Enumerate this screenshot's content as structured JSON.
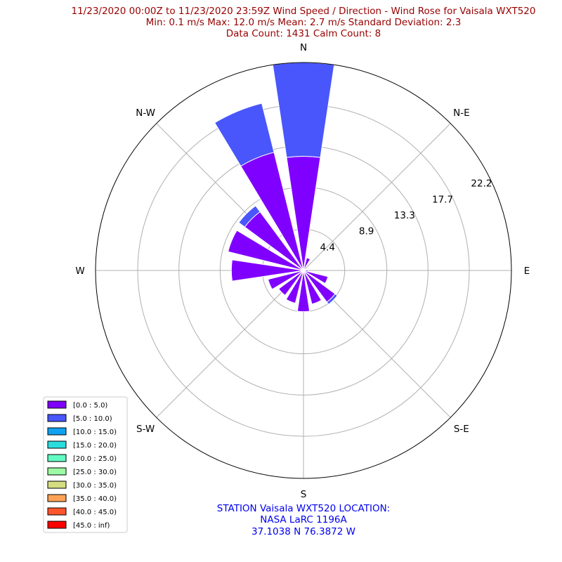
{
  "title_lines": [
    "11/23/2020 00:00Z to 11/23/2020 23:59Z Wind Speed / Direction - Wind Rose for Vaisala WXT520",
    "Min: 0.1 m/s   Max: 12.0 m/s   Mean: 2.7 m/s  Standard Deviation: 2.3",
    "Data Count: 1431  Calm Count:  8"
  ],
  "station_lines": [
    "STATION Vaisala WXT520 LOCATION:",
    "NASA LaRC 1196A",
    "37.1038 N 76.3872 W"
  ],
  "colors": {
    "title": "#990000",
    "station": "#0000ee",
    "grid": "#b0b0b0",
    "frame": "#000000"
  },
  "chart_data": {
    "type": "wind-rose",
    "radial_ticks": [
      "4.4",
      "8.9",
      "13.3",
      "17.7",
      "22.2"
    ],
    "rmax": 22.2,
    "direction_labels": [
      "N",
      "N-E",
      "E",
      "S-E",
      "S",
      "S-W",
      "W",
      "N-W"
    ],
    "sectors": [
      {
        "dir": 0,
        "values": [
          12.2,
          10.0,
          0,
          0,
          0,
          0,
          0,
          0,
          0,
          0
        ]
      },
      {
        "dir": 22.5,
        "values": [
          1.4,
          0,
          0,
          0,
          0,
          0,
          0,
          0,
          0,
          0
        ]
      },
      {
        "dir": 45,
        "values": [
          0.2,
          0,
          0,
          0,
          0,
          0,
          0,
          0,
          0,
          0
        ]
      },
      {
        "dir": 67.5,
        "values": [
          0.2,
          0,
          0,
          0,
          0,
          0,
          0,
          0,
          0,
          0
        ]
      },
      {
        "dir": 90,
        "values": [
          0.5,
          0,
          0,
          0,
          0,
          0,
          0,
          0,
          0,
          0
        ]
      },
      {
        "dir": 112.5,
        "values": [
          2.7,
          0,
          0,
          0,
          0,
          0,
          0,
          0,
          0,
          0
        ]
      },
      {
        "dir": 135,
        "values": [
          4.2,
          0.3,
          0,
          0,
          0,
          0,
          0,
          0,
          0,
          0
        ]
      },
      {
        "dir": 157.5,
        "values": [
          3.7,
          0,
          0,
          0,
          0,
          0,
          0,
          0,
          0,
          0
        ]
      },
      {
        "dir": 180,
        "values": [
          4.4,
          0,
          0,
          0,
          0,
          0,
          0,
          0,
          0,
          0
        ]
      },
      {
        "dir": 202.5,
        "values": [
          3.6,
          0,
          0,
          0,
          0,
          0,
          0,
          0,
          0,
          0
        ]
      },
      {
        "dir": 225,
        "values": [
          3.3,
          0,
          0,
          0,
          0,
          0,
          0,
          0,
          0,
          0
        ]
      },
      {
        "dir": 247.5,
        "values": [
          3.9,
          0,
          0,
          0,
          0,
          0,
          0,
          0,
          0,
          0
        ]
      },
      {
        "dir": 270,
        "values": [
          7.7,
          0,
          0,
          0,
          0,
          0,
          0,
          0,
          0,
          0
        ]
      },
      {
        "dir": 292.5,
        "values": [
          8.3,
          0,
          0,
          0,
          0,
          0,
          0,
          0,
          0,
          0
        ]
      },
      {
        "dir": 315,
        "values": [
          7.8,
          0.8,
          0,
          0,
          0,
          0,
          0,
          0,
          0,
          0
        ]
      },
      {
        "dir": 337.5,
        "values": [
          13.0,
          5.4,
          0,
          0,
          0,
          0,
          0,
          0,
          0,
          0
        ]
      }
    ],
    "series": [
      {
        "name": "[0.0 : 5.0)",
        "color": "#8000ff"
      },
      {
        "name": "[5.0 : 10.0)",
        "color": "#4856fb"
      },
      {
        "name": "[10.0 : 15.0)",
        "color": "#10a2f0"
      },
      {
        "name": "[15.0 : 20.0)",
        "color": "#2adddd"
      },
      {
        "name": "[20.0 : 25.0)",
        "color": "#62fbc4"
      },
      {
        "name": "[25.0 : 30.0)",
        "color": "#9cfba4"
      },
      {
        "name": "[30.0 : 35.0)",
        "color": "#d4dd80"
      },
      {
        "name": "[35.0 : 40.0)",
        "color": "#ffa256"
      },
      {
        "name": "[40.0 : 45.0)",
        "color": "#ff562c"
      },
      {
        "name": "[45.0 : inf)",
        "color": "#ff0000"
      }
    ],
    "legend_position": "lower-left"
  }
}
